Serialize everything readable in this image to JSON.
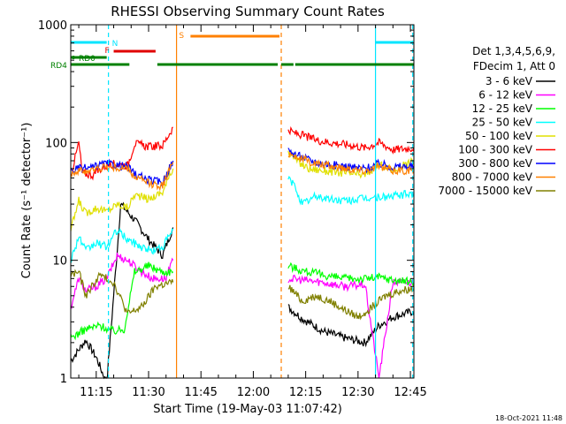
{
  "chart_data": {
    "type": "line",
    "title": "RHESSI Observing Summary Count Rates",
    "xlabel": "Start Time (19-May-03 11:07:42)",
    "ylabel": "Count Rate (s⁻¹ detector⁻¹)",
    "yscale": "log",
    "ylim": [
      1,
      1000
    ],
    "xlim": [
      "11:07:42",
      "12:46:00"
    ],
    "x_ticks": [
      "11:15",
      "11:30",
      "11:45",
      "12:00",
      "12:15",
      "12:30",
      "12:45"
    ],
    "y_ticks": [
      "1",
      "10",
      "100",
      "1000"
    ],
    "grid": false,
    "legend_position": "right",
    "legend_header": [
      "Det 1,3,4,5,6,9,",
      "FDecim 1, Att 0"
    ],
    "timestamp": "18-Oct-2021 11:48",
    "flags": [
      {
        "label": "N",
        "color": "#00e5ff",
        "segments": [
          [
            "11:07:42",
            "11:18:00"
          ],
          [
            "12:35:00",
            "12:45:40"
          ]
        ]
      },
      {
        "label": "F",
        "color": "#e00000",
        "segments": [
          [
            "11:20:00",
            "11:32:00"
          ]
        ]
      },
      {
        "label": "S",
        "color": "#ff8000",
        "segments": [
          [
            "11:42:00",
            "12:07:30"
          ]
        ]
      },
      {
        "label": "RD0",
        "color": "#008000",
        "segments": [
          [
            "11:07:42",
            "11:18:00"
          ]
        ]
      },
      {
        "label": "RD4",
        "color": "#008000",
        "segments": [
          [
            "11:07:42",
            "11:24:30"
          ],
          [
            "11:32:30",
            "12:07:00"
          ],
          [
            "12:08:00",
            "12:11:30"
          ],
          [
            "12:12:00",
            "12:46:00"
          ]
        ]
      }
    ],
    "vlines": [
      {
        "x": "11:18:30",
        "color": "#00e5ff",
        "style": "dashed"
      },
      {
        "x": "11:38:00",
        "color": "#ff8000",
        "style": "solid"
      },
      {
        "x": "12:08:00",
        "color": "#ff8000",
        "style": "dashed"
      },
      {
        "x": "12:35:00",
        "color": "#00e5ff",
        "style": "solid"
      },
      {
        "x": "12:45:40",
        "color": "#00e5ff",
        "style": "dashed"
      }
    ],
    "series": [
      {
        "name": "3 - 6 keV",
        "color": "#000000",
        "seg1": [
          [
            "11:07:42",
            1.4
          ],
          [
            "11:12",
            2.1
          ],
          [
            "11:15",
            1.5
          ],
          [
            "11:18",
            0.9
          ],
          [
            "11:21",
            12
          ],
          [
            "11:22",
            30
          ],
          [
            "11:26",
            22
          ],
          [
            "11:30",
            15
          ],
          [
            "11:34",
            11
          ],
          [
            "11:37",
            19
          ]
        ],
        "seg2": [
          [
            "12:10",
            4.0
          ],
          [
            "12:14",
            3.2
          ],
          [
            "12:20",
            2.5
          ],
          [
            "12:26",
            2.2
          ],
          [
            "12:32",
            2.0
          ],
          [
            "12:36",
            2.8
          ],
          [
            "12:40",
            3.3
          ],
          [
            "12:46",
            3.7
          ]
        ]
      },
      {
        "name": "6 - 12 keV",
        "color": "#ff00ff",
        "seg1": [
          [
            "11:07:42",
            4.0
          ],
          [
            "11:10",
            7.0
          ],
          [
            "11:12",
            5.5
          ],
          [
            "11:15",
            6.0
          ],
          [
            "11:18",
            7.0
          ],
          [
            "11:21",
            11
          ],
          [
            "11:24",
            10
          ],
          [
            "11:28",
            8
          ],
          [
            "11:31",
            7
          ],
          [
            "11:35",
            7
          ],
          [
            "11:37",
            10
          ]
        ],
        "seg2": [
          [
            "12:10",
            7.0
          ],
          [
            "12:14",
            6.8
          ],
          [
            "12:20",
            6.5
          ],
          [
            "12:26",
            6.0
          ],
          [
            "12:32",
            6.2
          ],
          [
            "12:36",
            1.0
          ],
          [
            "12:40",
            6.5
          ],
          [
            "12:46",
            6.5
          ]
        ]
      },
      {
        "name": "12 - 25 keV",
        "color": "#00ff00",
        "seg1": [
          [
            "11:07:42",
            2.2
          ],
          [
            "11:12",
            2.6
          ],
          [
            "11:16",
            2.8
          ],
          [
            "11:20",
            2.5
          ],
          [
            "11:23",
            2.6
          ],
          [
            "11:26",
            8.0
          ],
          [
            "11:30",
            9.0
          ],
          [
            "11:34",
            8.0
          ],
          [
            "11:37",
            8.0
          ]
        ],
        "seg2": [
          [
            "12:10",
            9.0
          ],
          [
            "12:14",
            8.2
          ],
          [
            "12:20",
            7.5
          ],
          [
            "12:26",
            7.0
          ],
          [
            "12:32",
            7.0
          ],
          [
            "12:36",
            7.2
          ],
          [
            "12:40",
            6.8
          ],
          [
            "12:46",
            6.5
          ]
        ]
      },
      {
        "name": "25 - 50 keV",
        "color": "#00ffff",
        "seg1": [
          [
            "11:07:42",
            10
          ],
          [
            "11:10",
            16
          ],
          [
            "11:12",
            12
          ],
          [
            "11:15",
            14
          ],
          [
            "11:18",
            13
          ],
          [
            "11:21",
            18
          ],
          [
            "11:24",
            15
          ],
          [
            "11:28",
            13
          ],
          [
            "11:31",
            12
          ],
          [
            "11:34",
            13
          ],
          [
            "11:37",
            18
          ]
        ],
        "seg2": [
          [
            "12:10",
            50
          ],
          [
            "12:12",
            42
          ],
          [
            "12:14",
            30
          ],
          [
            "12:18",
            35
          ],
          [
            "12:22",
            33
          ],
          [
            "12:26",
            32
          ],
          [
            "12:30",
            33
          ],
          [
            "12:34",
            34
          ],
          [
            "12:40",
            35
          ],
          [
            "12:46",
            37
          ]
        ]
      },
      {
        "name": "50 - 100 keV",
        "color": "#e0e000",
        "seg1": [
          [
            "11:07:42",
            18
          ],
          [
            "11:10",
            32
          ],
          [
            "11:12",
            25
          ],
          [
            "11:15",
            28
          ],
          [
            "11:18",
            26
          ],
          [
            "11:21",
            30
          ],
          [
            "11:24",
            28
          ],
          [
            "11:26",
            36
          ],
          [
            "11:30",
            33
          ],
          [
            "11:34",
            38
          ],
          [
            "11:37",
            60
          ]
        ],
        "seg2": [
          [
            "12:10",
            85
          ],
          [
            "12:13",
            68
          ],
          [
            "12:16",
            60
          ],
          [
            "12:20",
            58
          ],
          [
            "12:26",
            55
          ],
          [
            "12:32",
            53
          ],
          [
            "12:36",
            65
          ],
          [
            "12:40",
            58
          ],
          [
            "12:46",
            70
          ]
        ]
      },
      {
        "name": "100 - 300 keV",
        "color": "#ff0000",
        "seg1": [
          [
            "11:07:42",
            52
          ],
          [
            "11:10",
            100
          ],
          [
            "11:11",
            55
          ],
          [
            "11:14",
            53
          ],
          [
            "11:17",
            62
          ],
          [
            "11:20",
            66
          ],
          [
            "11:24",
            64
          ],
          [
            "11:26",
            98
          ],
          [
            "11:30",
            92
          ],
          [
            "11:34",
            94
          ],
          [
            "11:37",
            135
          ]
        ],
        "seg2": [
          [
            "12:10",
            125
          ],
          [
            "12:14",
            115
          ],
          [
            "12:18",
            105
          ],
          [
            "12:22",
            100
          ],
          [
            "12:28",
            95
          ],
          [
            "12:32",
            90
          ],
          [
            "12:36",
            100
          ],
          [
            "12:40",
            87
          ],
          [
            "12:46",
            90
          ]
        ]
      },
      {
        "name": "300 - 800 keV",
        "color": "#0000ff",
        "seg1": [
          [
            "11:07:42",
            58
          ],
          [
            "11:10",
            60
          ],
          [
            "11:14",
            61
          ],
          [
            "11:17",
            66
          ],
          [
            "11:20",
            65
          ],
          [
            "11:24",
            62
          ],
          [
            "11:26",
            54
          ],
          [
            "11:30",
            48
          ],
          [
            "11:34",
            46
          ],
          [
            "11:37",
            70
          ]
        ],
        "seg2": [
          [
            "12:10",
            85
          ],
          [
            "12:14",
            75
          ],
          [
            "12:18",
            68
          ],
          [
            "12:22",
            65
          ],
          [
            "12:28",
            62
          ],
          [
            "12:32",
            60
          ],
          [
            "12:36",
            66
          ],
          [
            "12:40",
            62
          ],
          [
            "12:46",
            63
          ]
        ]
      },
      {
        "name": "800 - 7000 keV",
        "color": "#ff8000",
        "seg1": [
          [
            "11:07:42",
            55
          ],
          [
            "11:10",
            57
          ],
          [
            "11:14",
            58
          ],
          [
            "11:17",
            62
          ],
          [
            "11:20",
            61
          ],
          [
            "11:24",
            60
          ],
          [
            "11:26",
            51
          ],
          [
            "11:30",
            45
          ],
          [
            "11:34",
            43
          ],
          [
            "11:37",
            68
          ]
        ],
        "seg2": [
          [
            "12:10",
            82
          ],
          [
            "12:14",
            72
          ],
          [
            "12:18",
            66
          ],
          [
            "12:22",
            63
          ],
          [
            "12:28",
            60
          ],
          [
            "12:32",
            58
          ],
          [
            "12:36",
            62
          ],
          [
            "12:40",
            58
          ],
          [
            "12:46",
            58
          ]
        ]
      },
      {
        "name": "7000 - 15000 keV",
        "color": "#808000",
        "seg1": [
          [
            "11:07:42",
            7.5
          ],
          [
            "11:10",
            8.0
          ],
          [
            "11:12",
            5.0
          ],
          [
            "11:16",
            7.5
          ],
          [
            "11:20",
            6.5
          ],
          [
            "11:24",
            3.5
          ],
          [
            "11:28",
            4.0
          ],
          [
            "11:32",
            6.0
          ],
          [
            "11:37",
            6.5
          ]
        ],
        "seg2": [
          [
            "12:10",
            6.0
          ],
          [
            "12:14",
            4.5
          ],
          [
            "12:18",
            5.0
          ],
          [
            "12:22",
            4.5
          ],
          [
            "12:26",
            3.8
          ],
          [
            "12:30",
            3.3
          ],
          [
            "12:34",
            4.0
          ],
          [
            "12:38",
            5.0
          ],
          [
            "12:42",
            5.5
          ],
          [
            "12:46",
            5.8
          ]
        ]
      }
    ]
  }
}
